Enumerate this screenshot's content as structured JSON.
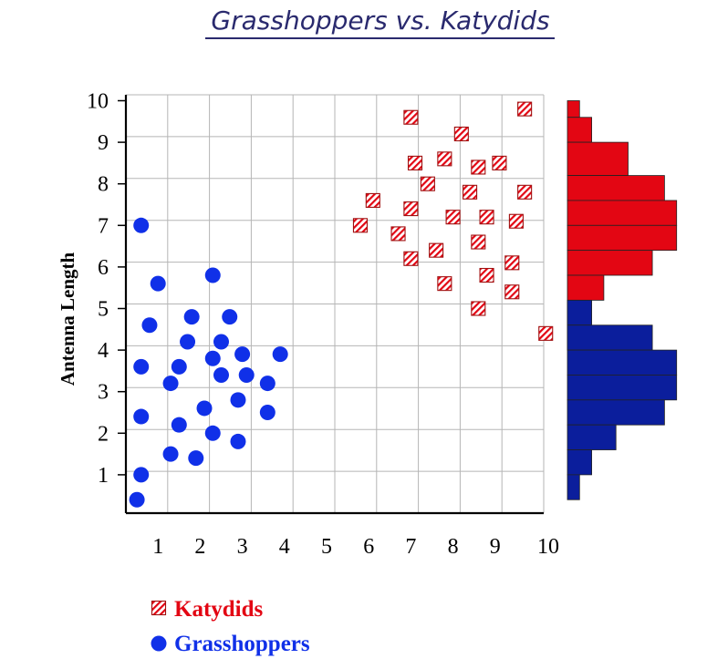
{
  "chart_data": {
    "type": "scatter",
    "title": "Grasshoppers vs. Katydids",
    "xlabel": "",
    "ylabel": "Antenna Length",
    "xlim": [
      0,
      10
    ],
    "ylim": [
      0,
      10
    ],
    "x_ticks": [
      1,
      2,
      3,
      4,
      5,
      6,
      7,
      8,
      9,
      10
    ],
    "y_ticks": [
      1,
      2,
      3,
      4,
      5,
      6,
      7,
      8,
      9,
      10
    ],
    "grid": true,
    "legend_position": "bottom-left",
    "series": [
      {
        "name": "Katydids",
        "marker": "hatched-square",
        "color": "#e30613",
        "points": [
          [
            9.7,
            9.8
          ],
          [
            7.0,
            9.6
          ],
          [
            8.2,
            9.2
          ],
          [
            7.8,
            8.6
          ],
          [
            7.1,
            8.5
          ],
          [
            8.6,
            8.4
          ],
          [
            9.1,
            8.5
          ],
          [
            7.4,
            8.0
          ],
          [
            8.4,
            7.8
          ],
          [
            9.7,
            7.8
          ],
          [
            6.1,
            7.6
          ],
          [
            7.0,
            7.4
          ],
          [
            8.0,
            7.2
          ],
          [
            8.8,
            7.2
          ],
          [
            9.5,
            7.1
          ],
          [
            5.8,
            7.0
          ],
          [
            6.7,
            6.8
          ],
          [
            8.6,
            6.6
          ],
          [
            7.6,
            6.4
          ],
          [
            7.0,
            6.2
          ],
          [
            9.4,
            6.1
          ],
          [
            8.8,
            5.8
          ],
          [
            7.8,
            5.6
          ],
          [
            9.4,
            5.4
          ],
          [
            8.6,
            5.0
          ],
          [
            10.2,
            4.4
          ]
        ]
      },
      {
        "name": "Grasshoppers",
        "marker": "circle",
        "color": "#1030e8",
        "points": [
          [
            0.6,
            7.0
          ],
          [
            2.3,
            5.8
          ],
          [
            1.0,
            5.6
          ],
          [
            1.8,
            4.8
          ],
          [
            2.7,
            4.8
          ],
          [
            0.8,
            4.6
          ],
          [
            1.7,
            4.2
          ],
          [
            2.5,
            4.2
          ],
          [
            3.0,
            3.9
          ],
          [
            3.9,
            3.9
          ],
          [
            2.3,
            3.8
          ],
          [
            0.6,
            3.6
          ],
          [
            1.5,
            3.6
          ],
          [
            2.5,
            3.4
          ],
          [
            3.1,
            3.4
          ],
          [
            1.3,
            3.2
          ],
          [
            3.6,
            3.2
          ],
          [
            2.9,
            2.8
          ],
          [
            2.1,
            2.6
          ],
          [
            0.6,
            2.4
          ],
          [
            3.6,
            2.5
          ],
          [
            1.5,
            2.2
          ],
          [
            2.3,
            2.0
          ],
          [
            2.9,
            1.8
          ],
          [
            1.3,
            1.5
          ],
          [
            1.9,
            1.4
          ],
          [
            0.6,
            1.0
          ],
          [
            0.5,
            0.4
          ]
        ]
      }
    ],
    "side_histograms": [
      {
        "series": "Katydids",
        "bins": [
          {
            "from": 9.6,
            "to": 10.0,
            "count": 1
          },
          {
            "from": 9.0,
            "to": 9.6,
            "count": 2
          },
          {
            "from": 8.2,
            "to": 9.0,
            "count": 5
          },
          {
            "from": 7.6,
            "to": 8.2,
            "count": 8
          },
          {
            "from": 7.0,
            "to": 7.6,
            "count": 9
          },
          {
            "from": 6.4,
            "to": 7.0,
            "count": 9
          },
          {
            "from": 5.8,
            "to": 6.4,
            "count": 7
          },
          {
            "from": 5.2,
            "to": 5.8,
            "count": 3
          },
          {
            "from": 4.6,
            "to": 5.2,
            "count": 1
          },
          {
            "from": 4.0,
            "to": 4.6,
            "count": 0.3
          }
        ]
      },
      {
        "series": "Grasshoppers",
        "bins": [
          {
            "from": 4.6,
            "to": 5.2,
            "count": 2
          },
          {
            "from": 4.0,
            "to": 4.6,
            "count": 7
          },
          {
            "from": 3.4,
            "to": 4.0,
            "count": 9
          },
          {
            "from": 2.8,
            "to": 3.4,
            "count": 9
          },
          {
            "from": 2.2,
            "to": 2.8,
            "count": 8
          },
          {
            "from": 1.6,
            "to": 2.2,
            "count": 4
          },
          {
            "from": 1.0,
            "to": 1.6,
            "count": 2
          },
          {
            "from": 0.4,
            "to": 1.0,
            "count": 1
          }
        ]
      }
    ]
  },
  "legend": {
    "items": [
      {
        "label": "Katydids",
        "marker": "hatched-square",
        "color": "#e30613"
      },
      {
        "label": "Grasshoppers",
        "marker": "circle",
        "color": "#1030e8"
      }
    ]
  },
  "colors": {
    "katydid_fill": "#e30613",
    "katydid_marker_border": "#a01010",
    "grasshopper_fill": "#1030e8",
    "grasshopper_bar": "#0b1e9c",
    "title": "#2a2a6e",
    "grid": "#b5b5b5"
  }
}
